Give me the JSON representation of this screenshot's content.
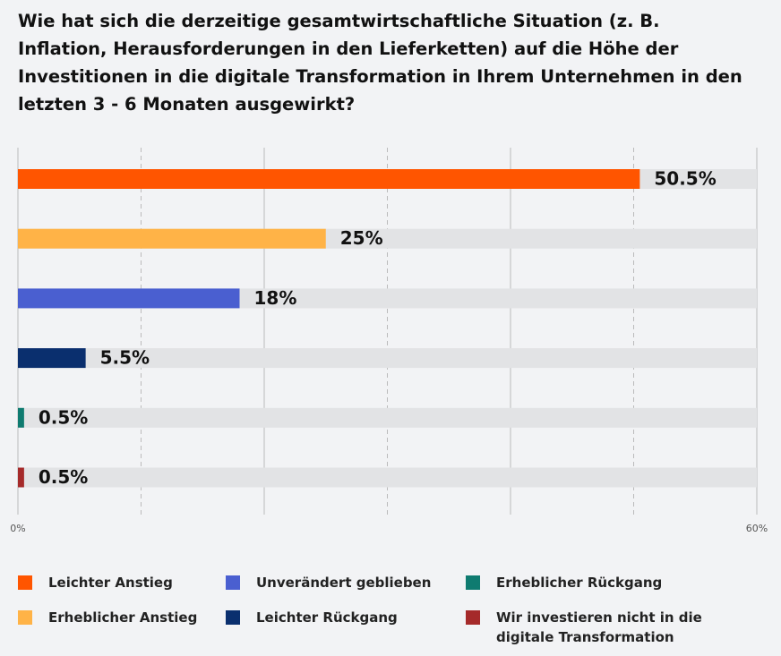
{
  "chart_data": {
    "type": "bar",
    "orientation": "horizontal",
    "title": "Wie hat sich die derzeitige gesamtwirtschaftliche Situation (z. B. Inflation, Herausforderungen in den Lieferketten) auf die Höhe der Investitionen in die digitale Transformation in Ihrem Unternehmen in den letzten 3 - 6 Monaten ausgewirkt?",
    "series": [
      {
        "name": "Leichter Anstieg",
        "color": "#ff5500",
        "values": [
          50.5
        ],
        "value_labels": [
          "50.5%"
        ]
      },
      {
        "name": "Erheblicher Anstieg",
        "color": "#ffb347",
        "values": [
          25
        ],
        "value_labels": [
          "25%"
        ]
      },
      {
        "name": "Unverändert geblieben",
        "color": "#4a5fd0",
        "values": [
          18
        ],
        "value_labels": [
          "18%"
        ]
      },
      {
        "name": "Leichter Rückgang",
        "color": "#0a2f6e",
        "values": [
          5.5
        ],
        "value_labels": [
          "5.5%"
        ]
      },
      {
        "name": "Erheblicher Rückgang",
        "color": "#0f7b70",
        "values": [
          0.5
        ],
        "value_labels": [
          "0.5%"
        ]
      },
      {
        "name": "Wir investieren nicht in die digitale Transformation",
        "color": "#a52a2a",
        "values": [
          0.5
        ],
        "value_labels": [
          "0.5%"
        ]
      }
    ],
    "xlim": [
      0,
      60
    ],
    "xticks": [
      {
        "value": 0,
        "label": "0%"
      },
      {
        "value": 10,
        "label": null
      },
      {
        "value": 20,
        "label": null
      },
      {
        "value": 30,
        "label": null
      },
      {
        "value": 40,
        "label": null
      },
      {
        "value": 50,
        "label": null
      },
      {
        "value": 60,
        "label": "60%"
      }
    ],
    "grid": true
  }
}
